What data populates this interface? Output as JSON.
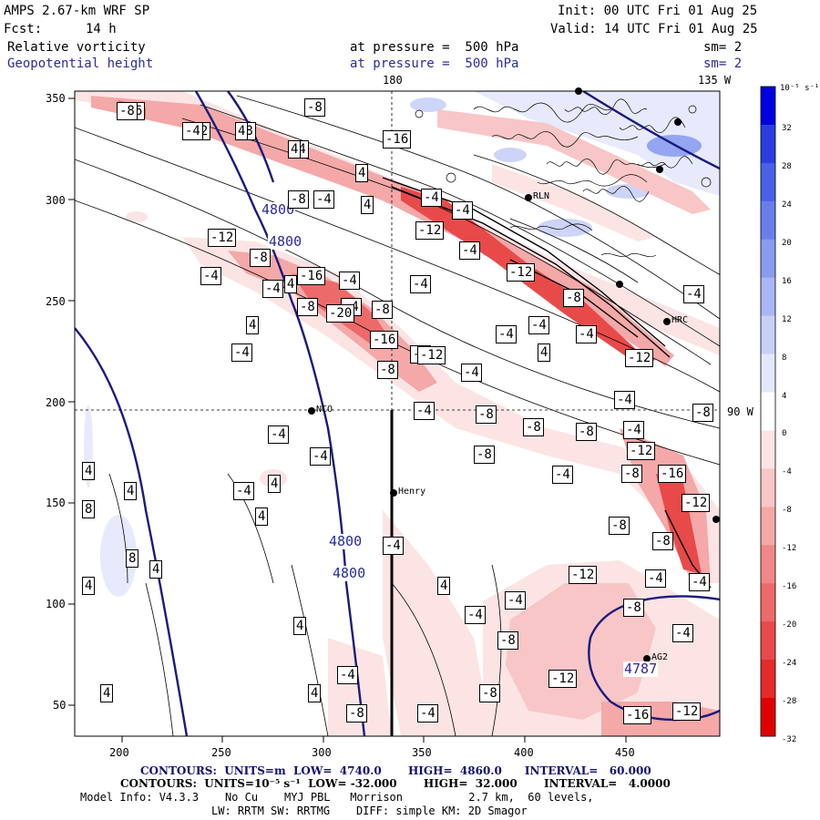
{
  "header": {
    "model_title": "AMPS 2.67-km WRF SP",
    "init_time": "Init: 00 UTC Fri 01 Aug 25",
    "forecast_label": "Fcst:",
    "forecast_hour": "14 h",
    "valid_time": "Valid: 14 UTC Fri 01 Aug 25",
    "field1_name": "Relative vorticity",
    "field1_level": "at pressure =  500 hPa",
    "field1_smooth": "sm= 2",
    "field2_name": "Geopotential height",
    "field2_level": "at pressure =  500 hPa",
    "field2_smooth": "sm= 2"
  },
  "map": {
    "lon_label_180": "180",
    "lon_label_135w": "135 W",
    "lon_label_90w": "90 W",
    "x_ticks": [
      "200",
      "250",
      "300",
      "350",
      "400",
      "450"
    ],
    "y_ticks": [
      "50",
      "100",
      "150",
      "200",
      "250",
      "300",
      "350"
    ],
    "stations": [
      {
        "name": "RLN"
      },
      {
        "name": "HRC"
      },
      {
        "name": "NCO"
      },
      {
        "name": "Henry"
      },
      {
        "name": "AG2"
      }
    ],
    "height_labels": [
      "4800",
      "4800",
      "4800",
      "4800",
      "4787"
    ],
    "vorticity_labels": [
      "-16",
      "-12",
      "-8",
      "-4",
      "-12",
      "-4",
      "-8",
      "-4",
      "4",
      "4",
      "-4",
      "-12",
      "-4",
      "-4",
      "-12",
      "-4",
      "-4",
      "4",
      "-12",
      "-8",
      "-16",
      "-4",
      "-4",
      "-8",
      "-4",
      "-20",
      "-8",
      "4",
      "-16",
      "-4",
      "-4",
      "-4",
      "4",
      "-4",
      "-4",
      "-12",
      "-4",
      "-8",
      "-8",
      "-4",
      "-8",
      "-8",
      "-4",
      "-4",
      "-8",
      "-12",
      "-8",
      "-4",
      "-4",
      "-4",
      "-8",
      "-16",
      "4",
      "4",
      "-4",
      "4",
      "-12",
      "8",
      "4",
      "-8",
      "4",
      "-4",
      "-8",
      "8",
      "4",
      "-12",
      "-4",
      "4",
      "-4",
      "-8",
      "4",
      "-4",
      "-8",
      "-4",
      "-4",
      "-12",
      "4",
      "-8",
      "4",
      "-4",
      "-8",
      "-16",
      "-12"
    ]
  },
  "colorbar": {
    "units": "10⁻⁵ s⁻¹",
    "labels": [
      "32",
      "28",
      "24",
      "20",
      "16",
      "12",
      "8",
      "4",
      "0",
      "-4",
      "-8",
      "-12",
      "-16",
      "-20",
      "-24",
      "-28",
      "-32"
    ],
    "colors": [
      "#0000e0",
      "#2a3ee0",
      "#4a60e6",
      "#6a7eea",
      "#8a9cf0",
      "#aab6f4",
      "#c8d0f8",
      "#e4e8fc",
      "#ffffff",
      "#fce4e4",
      "#f8c6c6",
      "#f4a8a8",
      "#f08888",
      "#ec6a6a",
      "#e84a4a",
      "#e42a2a",
      "#e00000"
    ]
  },
  "footer": {
    "contours_height": "CONTOURS:  UNITS=m  LOW=  4740.0       HIGH=  4860.0      INTERVAL=   60.000",
    "contours_vort": "CONTOURS:  UNITS=10⁻⁵ s⁻¹  LOW= -32.000       HIGH=  32.000       INTERVAL=   4.0000",
    "model_info": "Model Info: V4.3.3    No Cu    MYJ PBL   Morrison          2.7 km,  60 levels,",
    "model_info2": "LW: RRTM SW: RRTMG    DIFF: simple KM: 2D Smagor"
  }
}
